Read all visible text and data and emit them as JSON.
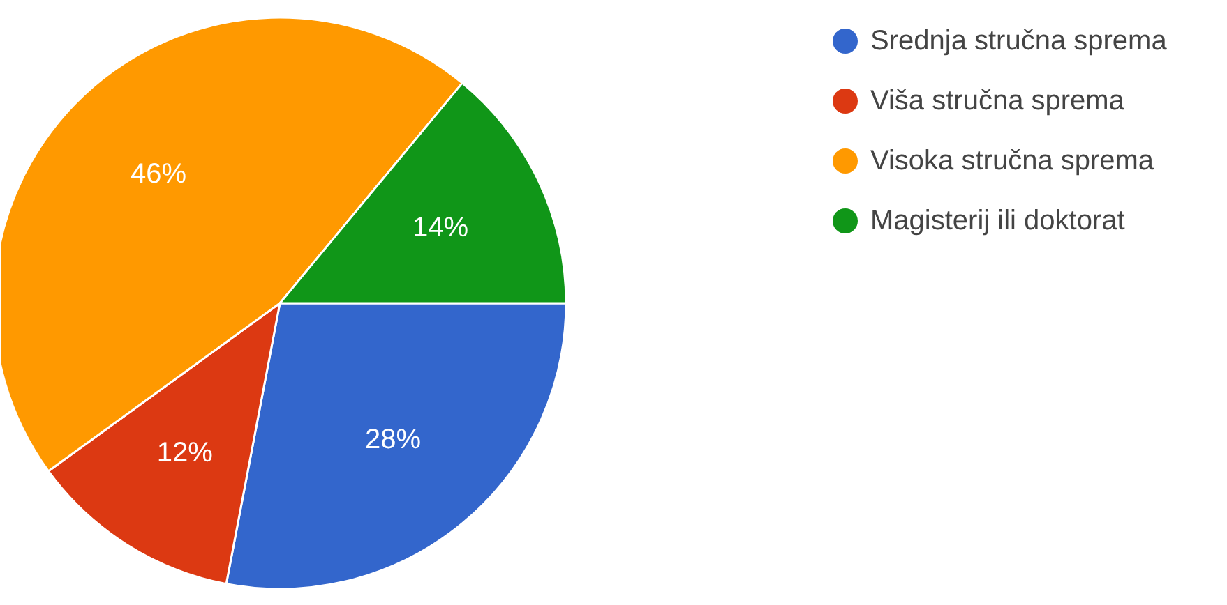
{
  "chart_data": {
    "type": "pie",
    "categories": [
      "Srednja stručna sprema",
      "Viša stručna sprema",
      "Visoka stručna sprema",
      "Magisterij ili doktorat"
    ],
    "values": [
      28,
      12,
      46,
      14
    ],
    "colors": [
      "#3366cc",
      "#dc3912",
      "#ff9900",
      "#109618"
    ],
    "value_labels": [
      "28%",
      "12%",
      "46%",
      "14%"
    ],
    "legend": "top right"
  }
}
